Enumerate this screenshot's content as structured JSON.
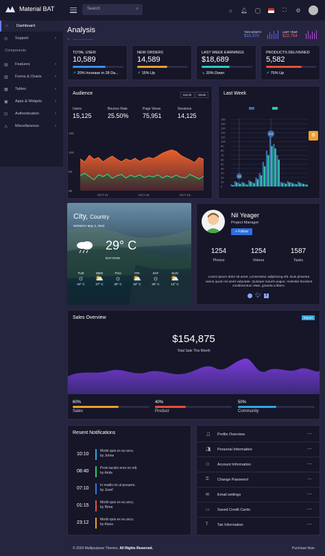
{
  "app": {
    "brand": "Material BAT"
  },
  "search": {
    "placeholder": "Search"
  },
  "sidebar": {
    "items": [
      {
        "label": "Dashboard",
        "icon": "home-icon"
      },
      {
        "label": "Support",
        "icon": "support-icon"
      },
      {
        "section": "Components"
      },
      {
        "label": "Features",
        "icon": "features-icon"
      },
      {
        "label": "Forms & Charts",
        "icon": "forms-icon"
      },
      {
        "label": "Tables",
        "icon": "tables-icon"
      },
      {
        "label": "Apps & Widgets",
        "icon": "apps-icon"
      },
      {
        "label": "Authentication",
        "icon": "lock-icon"
      },
      {
        "label": "Miscellaneous",
        "icon": "warning-icon"
      }
    ]
  },
  "page": {
    "title": "Analysis"
  },
  "month_stats": {
    "this_month": {
      "label": "THIS MONTH",
      "value": "$10,370"
    },
    "last_year": {
      "label": "LAST YEAR",
      "value": "$22,754"
    }
  },
  "stats": [
    {
      "label": "TOTAL USER",
      "value": "10,589",
      "foot": "20% Increase in 28 Da...",
      "progress": 0.65,
      "color": "#3a8fe8"
    },
    {
      "label": "NEW ORDERS",
      "value": "14,589",
      "foot": "15% Up",
      "progress": 0.6,
      "color": "#f0a030"
    },
    {
      "label": "LAST WEEK EARNINGS",
      "value": "$18,689",
      "foot": "20% Down",
      "progress": 0.55,
      "color": "#2ec8c8"
    },
    {
      "label": "PRODUCTS DELIVERED",
      "value": "5,582",
      "foot": "75% Up",
      "progress": 0.7,
      "color": "#e8503a"
    }
  ],
  "audience": {
    "title": "Audience",
    "seg_month": "Month",
    "seg_week": "Week",
    "stats": [
      {
        "label": "Users",
        "value": "15,125"
      },
      {
        "label": "Bounce Rate",
        "value": "25.50%"
      },
      {
        "label": "Page Views",
        "value": "75,951"
      },
      {
        "label": "Sessions",
        "value": "14,125"
      }
    ]
  },
  "chart_data": [
    {
      "type": "area",
      "title": "Audience",
      "xlabel": "",
      "ylabel": "",
      "x_ticks": [
        "OCT 21",
        "OCT 22",
        "OCT 23"
      ],
      "y_ticks": [
        "15K",
        "10K",
        "5K",
        "0K"
      ],
      "ylim": [
        0,
        16000
      ],
      "series": [
        {
          "values": [
            8800,
            8000,
            9800,
            8700,
            9200,
            8000,
            8900,
            9600,
            8700,
            8000,
            8800,
            8300,
            9000,
            8100,
            8800,
            9200,
            8900,
            9600,
            10400,
            10900,
            11300,
            10900,
            9800,
            9100,
            8500,
            7800,
            9200,
            8700
          ]
        },
        {
          "values": [
            4200,
            4800,
            3900,
            3000,
            4400,
            3900,
            4600,
            3400,
            4100,
            4500,
            3500,
            4300,
            3800,
            4400,
            3600,
            4100,
            3800,
            4400,
            3500,
            4100,
            3600,
            4300,
            3700,
            3500,
            4500,
            3900,
            3200,
            4000
          ]
        }
      ]
    },
    {
      "type": "bar",
      "title": "Last Week",
      "y_ticks": [
        "150",
        "140",
        "130",
        "120",
        "110",
        "100",
        "90",
        "80",
        "70",
        "60",
        "50",
        "40",
        "30",
        "20",
        "10",
        "0"
      ],
      "ylim": [
        0,
        150
      ],
      "series": [
        {
          "values": [
            5,
            12,
            8,
            10,
            6,
            14,
            9,
            20,
            30,
            55,
            80,
            110,
            95,
            70,
            10,
            8,
            12,
            9,
            6,
            11,
            7,
            5
          ]
        },
        {
          "values": [
            3,
            9,
            6,
            8,
            4,
            11,
            7,
            16,
            25,
            45,
            70,
            90,
            85,
            60,
            8,
            6,
            9,
            7,
            5,
            8,
            6,
            4
          ]
        }
      ],
      "annotations": [
        {
          "label": "110"
        },
        {
          "label": "15"
        }
      ]
    }
  ],
  "weather": {
    "city": "City,",
    "country": "Country",
    "date": "MONDAY",
    "date_rest": "May 3, 2023",
    "temp": "29° C",
    "condition": "DAY RAIN",
    "days": [
      {
        "day": "TUE",
        "temp": "24° C"
      },
      {
        "day": "WED",
        "temp": "27° C"
      },
      {
        "day": "THU",
        "temp": "25° C"
      },
      {
        "day": "FRI",
        "temp": "22° C"
      },
      {
        "day": "SAT",
        "temp": "25° C"
      },
      {
        "day": "SUN",
        "temp": "14° C"
      }
    ]
  },
  "profile": {
    "name": "Nil Yeager",
    "role": "Project Manager",
    "follow": "+ Follow",
    "stats": [
      {
        "value": "1254",
        "label": "Photos"
      },
      {
        "value": "1254",
        "label": "Videos"
      },
      {
        "value": "1587",
        "label": "Tasks"
      }
    ],
    "bio": "Lorem ipsum dolor sit amet, consectetur adipisicing elit. Duis pharetra varius quam sit amet vulputate. Quisque mauris augue, molestie tincidunt condimentum vitae, gravida a libero."
  },
  "sales": {
    "title": "Sales Overview",
    "export": "Export",
    "value": "$154,875",
    "subtitle": "Total Sale This Month",
    "metrics": [
      {
        "pct": "60%",
        "label": "Sales",
        "progress": 0.6,
        "color": "#f0a030"
      },
      {
        "pct": "40%",
        "label": "Product",
        "progress": 0.4,
        "color": "#e8503a"
      },
      {
        "pct": "50%",
        "label": "Community",
        "progress": 0.5,
        "color": "#2fa8e8"
      }
    ]
  },
  "notifications": {
    "title": "Resent Notifications",
    "items": [
      {
        "time": "10:10",
        "l1": "Morbi quis ex eu arcu.",
        "l2": "by Johne",
        "color": "#2fa8e8"
      },
      {
        "time": "08:40",
        "l1": "Proin iaculis eros no odi.",
        "l2": "by Amla",
        "color": "#2ec86e"
      },
      {
        "time": "07:10",
        "l1": "In mattis mi ut posuere.",
        "l2": "by Josef",
        "color": "#2f7ae8"
      },
      {
        "time": "01:15",
        "l1": "Morbi quis ex eu arcu.",
        "l2": "by Rima",
        "color": "#e8503a"
      },
      {
        "time": "23:12",
        "l1": "Morbi quis ex eu arcu.",
        "l2": "by Alaxa",
        "color": "#f0a030"
      }
    ]
  },
  "menu": [
    {
      "label": "Profile Overview",
      "icon": "user-icon"
    },
    {
      "label": "Personal Information",
      "icon": "users-icon"
    },
    {
      "label": "Account Information",
      "icon": "account-icon"
    },
    {
      "label": "Change Password",
      "icon": "key-icon"
    },
    {
      "label": "Email settings",
      "icon": "email-icon"
    },
    {
      "label": "Saved Credit Cards",
      "icon": "card-icon"
    },
    {
      "label": "Tax Information",
      "icon": "tax-icon"
    }
  ],
  "footer": {
    "copyright": "© 2024 Multipurpose Themes.",
    "rights": "All Rights Reserved.",
    "purchase": "Purchase Now"
  }
}
